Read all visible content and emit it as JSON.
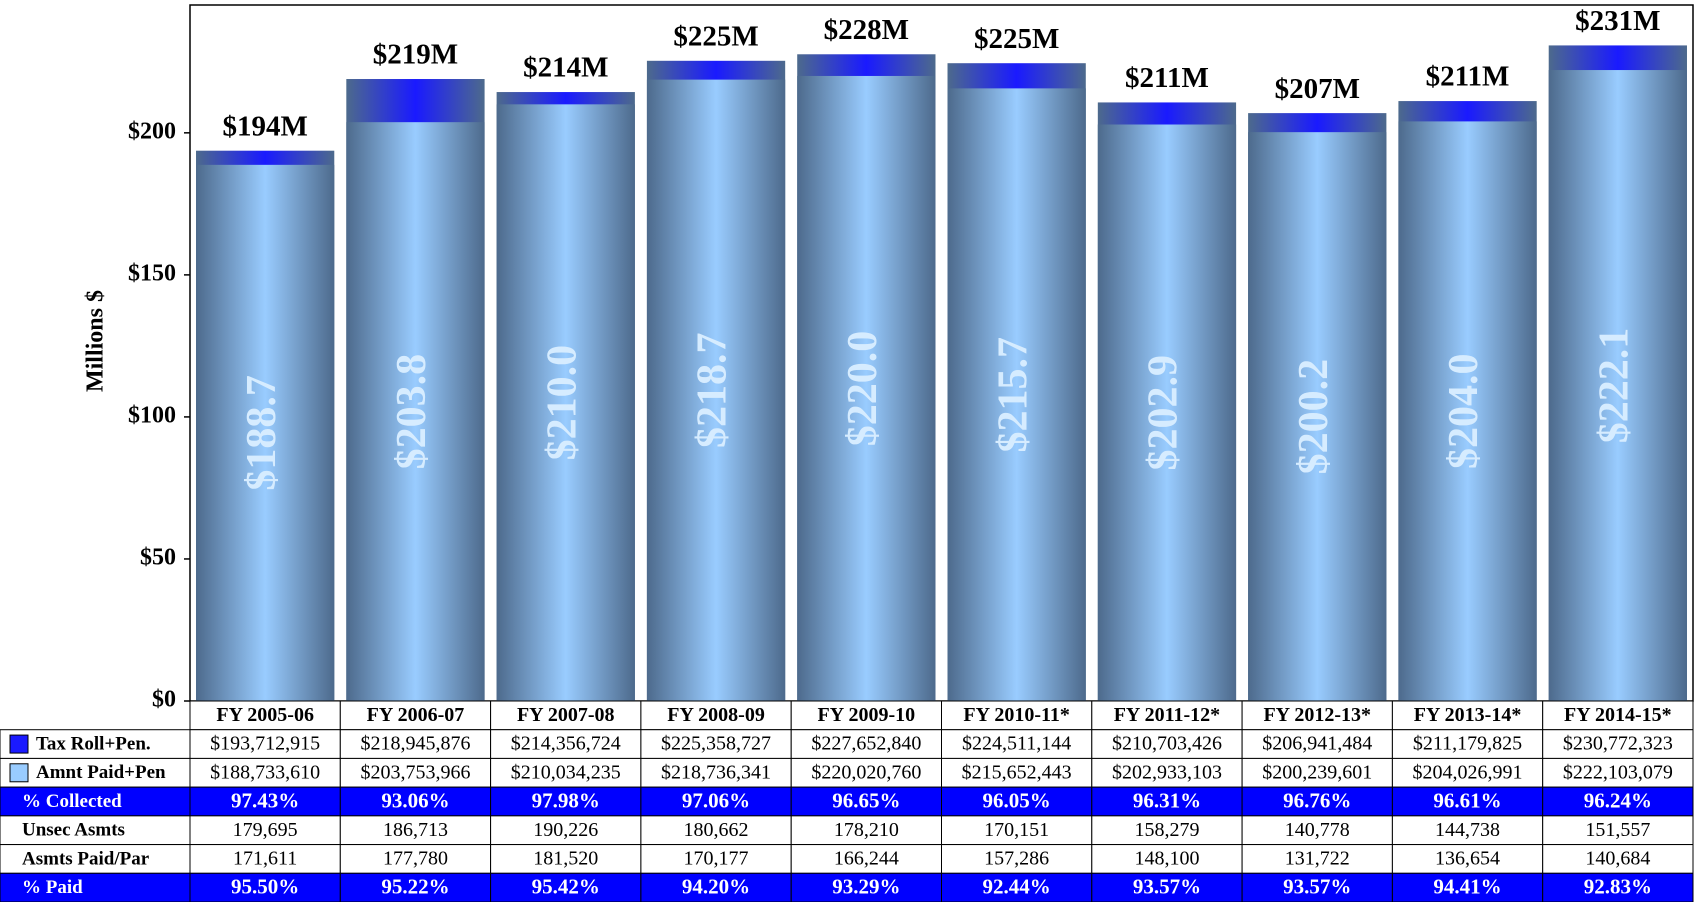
{
  "chart_data": {
    "type": "bar",
    "y_label": "Millions $",
    "categories": [
      "FY 2005-06",
      "FY 2006-07",
      "FY 2007-08",
      "FY 2008-09",
      "FY 2009-10",
      "FY 2010-11*",
      "FY 2011-12*",
      "FY 2012-13*",
      "FY 2013-14*",
      "FY 2014-15*"
    ],
    "ylim": [
      0,
      245
    ],
    "yticks": [
      {
        "value": 0,
        "label": "$0"
      },
      {
        "value": 50,
        "label": "$50"
      },
      {
        "value": 100,
        "label": "$100"
      },
      {
        "value": 150,
        "label": "$150"
      },
      {
        "value": 200,
        "label": "$200"
      }
    ],
    "series": [
      {
        "name": "Tax Roll+Pen.",
        "color": "#1a1aff",
        "values": [
          193.712915,
          218.945876,
          214.356724,
          225.358727,
          227.65284,
          224.511144,
          210.703426,
          206.941484,
          211.179825,
          230.772323
        ],
        "value_labels": [
          "$194M",
          "$219M",
          "$214M",
          "$225M",
          "$228M",
          "$225M",
          "$211M",
          "$207M",
          "$211M",
          "$231M"
        ],
        "cells": [
          "$193,712,915",
          "$218,945,876",
          "$214,356,724",
          "$225,358,727",
          "$227,652,840",
          "$224,511,144",
          "$210,703,426",
          "$206,941,484",
          "$211,179,825",
          "$230,772,323"
        ]
      },
      {
        "name": "Amnt Paid+Pen",
        "color": "#99ccff",
        "values": [
          188.73361,
          203.753966,
          210.034235,
          218.736341,
          220.02076,
          215.652443,
          202.933103,
          200.239601,
          204.026991,
          222.103079
        ],
        "value_labels": [
          "$188.7",
          "$203.8",
          "$210.0",
          "$218.7",
          "$220.0",
          "$215.7",
          "$202.9",
          "$200.2",
          "$204.0",
          "$222.1"
        ],
        "cells": [
          "$188,733,610",
          "$203,753,966",
          "$210,034,235",
          "$218,736,341",
          "$220,020,760",
          "$215,652,443",
          "$202,933,103",
          "$200,239,601",
          "$204,026,991",
          "$222,103,079"
        ]
      }
    ],
    "table": {
      "rows": [
        {
          "label": "% Collected",
          "highlight": true,
          "cells": [
            "97.43%",
            "93.06%",
            "97.98%",
            "97.06%",
            "96.65%",
            "96.05%",
            "96.31%",
            "96.76%",
            "96.61%",
            "96.24%"
          ]
        },
        {
          "label": "Unsec Asmts",
          "highlight": false,
          "cells": [
            "179,695",
            "186,713",
            "190,226",
            "180,662",
            "178,210",
            "170,151",
            "158,279",
            "140,778",
            "144,738",
            "151,557"
          ]
        },
        {
          "label": "Asmts Paid/Par",
          "highlight": false,
          "cells": [
            "171,611",
            "177,780",
            "181,520",
            "170,177",
            "166,244",
            "157,286",
            "148,100",
            "131,722",
            "136,654",
            "140,684"
          ]
        },
        {
          "label": "% Paid",
          "highlight": true,
          "cells": [
            "95.50%",
            "95.22%",
            "95.42%",
            "94.20%",
            "93.29%",
            "92.44%",
            "93.57%",
            "93.57%",
            "94.41%",
            "92.83%"
          ]
        }
      ]
    }
  }
}
